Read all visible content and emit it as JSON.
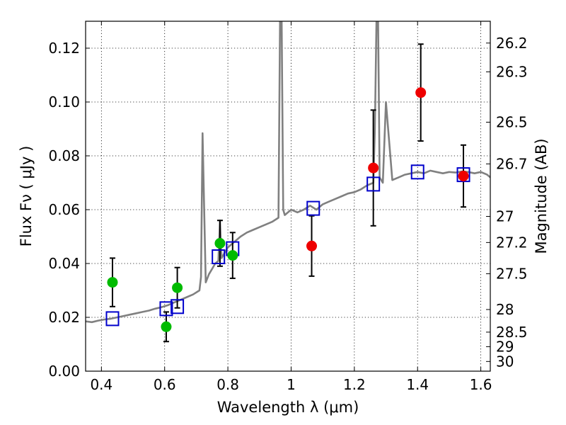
{
  "chart_data": {
    "type": "scatter",
    "title": "",
    "xlabel": "Wavelength  λ (μm)",
    "ylabel_left": "Flux  Fν  ( μJy )",
    "ylabel_right": "Magnitude (AB)",
    "xlim": [
      0.35,
      1.63
    ],
    "ylim": [
      0.0,
      0.13
    ],
    "x_ticks": [
      0.4,
      0.6,
      0.8,
      1.0,
      1.2,
      1.4,
      1.6
    ],
    "x_tick_labels": [
      "0.4",
      "0.6",
      "0.8",
      "1",
      "1.2",
      "1.4",
      "1.6"
    ],
    "y_ticks": [
      0.0,
      0.02,
      0.04,
      0.06,
      0.08,
      0.1,
      0.12
    ],
    "y_tick_labels": [
      "0.00",
      "0.02",
      "0.04",
      "0.06",
      "0.08",
      "0.10",
      "0.12"
    ],
    "right_ticks": [
      {
        "flux": 0.1219,
        "label": "26.2"
      },
      {
        "flux": 0.1112,
        "label": "26.3"
      },
      {
        "flux": 0.0925,
        "label": "26.5"
      },
      {
        "flux": 0.077,
        "label": "26.7"
      },
      {
        "flux": 0.0575,
        "label": "27"
      },
      {
        "flux": 0.0478,
        "label": "27.2"
      },
      {
        "flux": 0.0362,
        "label": "27.5"
      },
      {
        "flux": 0.0229,
        "label": "28"
      },
      {
        "flux": 0.0145,
        "label": "28.5"
      },
      {
        "flux": 0.0091,
        "label": "29"
      },
      {
        "flux": 0.0036,
        "label": "30"
      }
    ],
    "grid": true,
    "colors": {
      "template": "#808080",
      "green": "#00bb00",
      "red": "#ee0000",
      "model_box": "#0000cc",
      "errorbar": "#000000"
    },
    "series": [
      {
        "name": "template spectrum",
        "kind": "line",
        "x": [
          0.35,
          0.37,
          0.39,
          0.41,
          0.43,
          0.45,
          0.47,
          0.49,
          0.51,
          0.53,
          0.55,
          0.57,
          0.59,
          0.61,
          0.63,
          0.65,
          0.67,
          0.69,
          0.71,
          0.715,
          0.72,
          0.725,
          0.73,
          0.74,
          0.75,
          0.76,
          0.77,
          0.775,
          0.78,
          0.79,
          0.8,
          0.82,
          0.84,
          0.86,
          0.88,
          0.9,
          0.92,
          0.94,
          0.96,
          0.965,
          0.97,
          0.975,
          0.98,
          1.0,
          1.02,
          1.04,
          1.06,
          1.08,
          1.1,
          1.12,
          1.14,
          1.16,
          1.18,
          1.2,
          1.22,
          1.24,
          1.26,
          1.265,
          1.27,
          1.275,
          1.28,
          1.29,
          1.3,
          1.32,
          1.34,
          1.36,
          1.38,
          1.4,
          1.42,
          1.44,
          1.46,
          1.48,
          1.5,
          1.52,
          1.54,
          1.56,
          1.58,
          1.6,
          1.62,
          1.63
        ],
        "y": [
          0.0185,
          0.0182,
          0.0188,
          0.0192,
          0.0195,
          0.02,
          0.0205,
          0.021,
          0.0215,
          0.022,
          0.0225,
          0.0232,
          0.0238,
          0.0245,
          0.0255,
          0.0265,
          0.0275,
          0.0285,
          0.03,
          0.035,
          0.0884,
          0.06,
          0.033,
          0.036,
          0.038,
          0.04,
          0.041,
          0.056,
          0.042,
          0.044,
          0.046,
          0.048,
          0.05,
          0.0515,
          0.0525,
          0.0535,
          0.0545,
          0.0555,
          0.057,
          0.13,
          0.13,
          0.06,
          0.058,
          0.06,
          0.059,
          0.06,
          0.0615,
          0.06,
          0.062,
          0.063,
          0.064,
          0.065,
          0.066,
          0.0665,
          0.0675,
          0.069,
          0.07,
          0.09,
          0.13,
          0.13,
          0.072,
          0.07,
          0.1,
          0.071,
          0.072,
          0.073,
          0.0735,
          0.074,
          0.0735,
          0.0745,
          0.074,
          0.0735,
          0.074,
          0.0738,
          0.0742,
          0.074,
          0.0735,
          0.074,
          0.073,
          0.072
        ]
      },
      {
        "name": "green observations",
        "kind": "points",
        "x": [
          0.435,
          0.605,
          0.64,
          0.775,
          0.815
        ],
        "y": [
          0.033,
          0.0165,
          0.031,
          0.0475,
          0.043
        ],
        "yerr": [
          0.009,
          0.0055,
          0.0075,
          0.0085,
          0.0085
        ]
      },
      {
        "name": "red observations",
        "kind": "points",
        "x": [
          1.065,
          1.26,
          1.41,
          1.545
        ],
        "y": [
          0.0465,
          0.0755,
          0.1035,
          0.0725
        ],
        "yerr": [
          0.0112,
          0.0215,
          0.018,
          0.0115
        ]
      },
      {
        "name": "model band fluxes",
        "kind": "squares",
        "x": [
          0.435,
          0.605,
          0.64,
          0.77,
          0.815,
          1.07,
          1.26,
          1.4,
          1.545
        ],
        "y": [
          0.0195,
          0.0232,
          0.024,
          0.0425,
          0.0455,
          0.0605,
          0.0695,
          0.074,
          0.073
        ]
      }
    ]
  }
}
